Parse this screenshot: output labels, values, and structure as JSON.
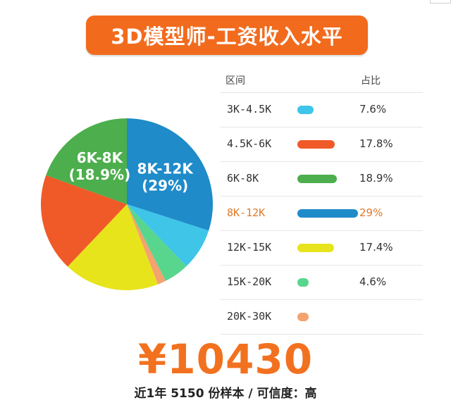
{
  "title": "3D模型师-工资收入水平",
  "chart_data": {
    "type": "pie",
    "categories": [
      "3K-4.5K",
      "4.5K-6K",
      "6K-8K",
      "8K-12K",
      "12K-15K",
      "15K-20K",
      "20K-30K"
    ],
    "values": [
      7.6,
      17.8,
      18.9,
      29,
      17.4,
      4.6,
      1.5
    ],
    "colors": [
      "#3ec5e8",
      "#f05a28",
      "#4cae4c",
      "#1f8bc9",
      "#e8e41c",
      "#58d68d",
      "#f4a26e"
    ],
    "labels": {
      "6K-8K": {
        "name": "6K-8K",
        "pct": "(18.9%)"
      },
      "8K-12K": {
        "name": "8K-12K",
        "pct": "(29%)"
      }
    }
  },
  "table": {
    "header_range": "区间",
    "header_share": "占比",
    "rows": [
      {
        "range": "3K-4.5K",
        "pct": "7.6%",
        "value": 7.6,
        "color": "#3ec5e8"
      },
      {
        "range": "4.5K-6K",
        "pct": "17.8%",
        "value": 17.8,
        "color": "#f05a28"
      },
      {
        "range": "6K-8K",
        "pct": "18.9%",
        "value": 18.9,
        "color": "#4cae4c"
      },
      {
        "range": "8K-12K",
        "pct": "29%",
        "value": 29,
        "color": "#1f8bc9",
        "highlight": true
      },
      {
        "range": "12K-15K",
        "pct": "17.4%",
        "value": 17.4,
        "color": "#e8e41c"
      },
      {
        "range": "15K-20K",
        "pct": "4.6%",
        "value": 4.6,
        "color": "#58d68d"
      },
      {
        "range": "20K-30K",
        "pct": "",
        "value": 1.5,
        "color": "#f4a26e"
      }
    ]
  },
  "salary": "¥10430",
  "footnote": "近1年 5150 份样本 / 可信度：高"
}
